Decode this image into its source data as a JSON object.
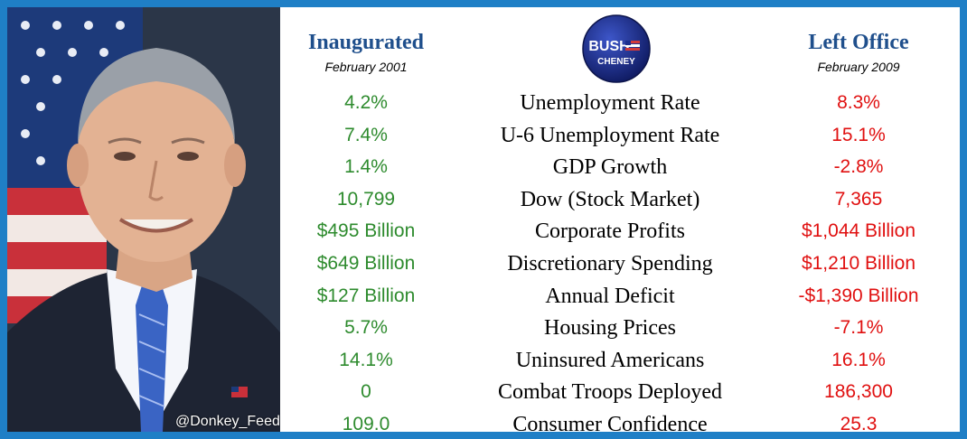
{
  "header": {
    "left_title": "Inaugurated",
    "left_subtitle": "February 2001",
    "right_title": "Left Office",
    "right_subtitle": "February 2009",
    "badge_line1": "BUSH",
    "badge_line2": "CHENEY"
  },
  "watermark": "@Donkey_Feed",
  "colors": {
    "border": "#1f7fc6",
    "header_blue": "#1f4f8c",
    "before_green": "#2e8b2e",
    "after_red": "#e01010",
    "badge_blue": "#1c2f8f"
  },
  "rows": [
    {
      "metric": "Unemployment Rate",
      "before": "4.2%",
      "after": "8.3%"
    },
    {
      "metric": "U-6 Unemployment Rate",
      "before": "7.4%",
      "after": "15.1%"
    },
    {
      "metric": "GDP Growth",
      "before": "1.4%",
      "after": "-2.8%"
    },
    {
      "metric": "Dow (Stock Market)",
      "before": "10,799",
      "after": "7,365"
    },
    {
      "metric": "Corporate Profits",
      "before": "$495 Billion",
      "after": "$1,044 Billion"
    },
    {
      "metric": "Discretionary Spending",
      "before": "$649 Billion",
      "after": "$1,210 Billion"
    },
    {
      "metric": "Annual Deficit",
      "before": "$127 Billion",
      "after": "-$1,390 Billion"
    },
    {
      "metric": "Housing Prices",
      "before": "5.7%",
      "after": "-7.1%"
    },
    {
      "metric": "Uninsured Americans",
      "before": "14.1%",
      "after": "16.1%"
    },
    {
      "metric": "Combat Troops Deployed",
      "before": "0",
      "after": "186,300"
    },
    {
      "metric": "Consumer Confidence",
      "before": "109.0",
      "after": "25.3"
    }
  ]
}
